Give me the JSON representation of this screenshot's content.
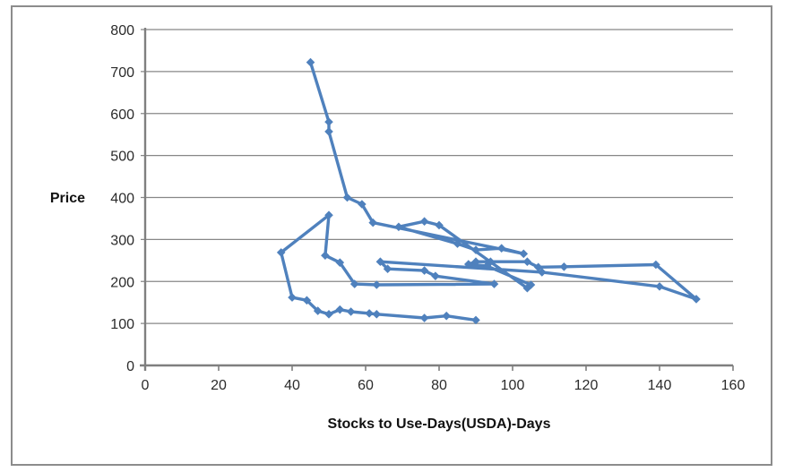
{
  "chart_data": {
    "type": "scatter",
    "connected": true,
    "marker": "diamond",
    "series_color": "#4F81BD",
    "gridline_color": "#878787",
    "axis_color": "#7F7F7F",
    "frame_color": "#8C8C8C",
    "title": "",
    "xlabel": "Stocks to Use-Days(USDA)-Days",
    "ylabel": "Price",
    "xlim": [
      0,
      160
    ],
    "ylim": [
      0,
      800
    ],
    "x_ticks": [
      0,
      20,
      40,
      60,
      80,
      100,
      120,
      140,
      160
    ],
    "y_ticks": [
      0,
      100,
      200,
      300,
      400,
      500,
      600,
      700,
      800
    ],
    "grid": "horizontal",
    "legend": "none",
    "points": [
      [
        90,
        108
      ],
      [
        82,
        118
      ],
      [
        76,
        113
      ],
      [
        63,
        122
      ],
      [
        61,
        124
      ],
      [
        56,
        128
      ],
      [
        53,
        133
      ],
      [
        50,
        122
      ],
      [
        47,
        130
      ],
      [
        44,
        155
      ],
      [
        40,
        162
      ],
      [
        37,
        269
      ],
      [
        50,
        358
      ],
      [
        49,
        262
      ],
      [
        53,
        245
      ],
      [
        57,
        194
      ],
      [
        63,
        192
      ],
      [
        95,
        194
      ],
      [
        79,
        213
      ],
      [
        76,
        226
      ],
      [
        66,
        230
      ],
      [
        64,
        247
      ],
      [
        108,
        222
      ],
      [
        140,
        188
      ],
      [
        150,
        158
      ],
      [
        139,
        240
      ],
      [
        114,
        235
      ],
      [
        107,
        234
      ],
      [
        104,
        247
      ],
      [
        94,
        247
      ],
      [
        90,
        247
      ],
      [
        88,
        241
      ],
      [
        93,
        237
      ],
      [
        105,
        192
      ],
      [
        104,
        184
      ],
      [
        80,
        334
      ],
      [
        76,
        343
      ],
      [
        69,
        330
      ],
      [
        85,
        290
      ],
      [
        90,
        275
      ],
      [
        97,
        279
      ],
      [
        103,
        266
      ],
      [
        62,
        340
      ],
      [
        59,
        384
      ],
      [
        55,
        400
      ],
      [
        50,
        557
      ],
      [
        50,
        580
      ],
      [
        45,
        722
      ]
    ]
  }
}
